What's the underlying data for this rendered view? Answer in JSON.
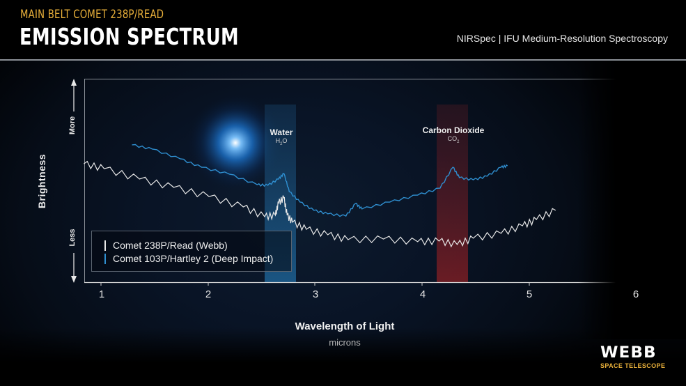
{
  "header": {
    "subtitle": "MAIN BELT COMET 238P/READ",
    "title": "EMISSION SPECTRUM",
    "instrument": "NIRSpec | IFU Medium-Resolution Spectroscopy"
  },
  "colors": {
    "accent_gold": "#e9b03a",
    "series_webb": "#e8e8e8",
    "series_deep_impact": "#2f8fd0",
    "water_band": "#1f5f8f",
    "co2_band": "#6a1b1e"
  },
  "axes": {
    "ylabel": "Brightness",
    "y_more": "More",
    "y_less": "Less",
    "xlabel": "Wavelength of Light",
    "xunit": "microns",
    "xticks": [
      "1",
      "2",
      "3",
      "4",
      "5",
      "6"
    ]
  },
  "annotations": {
    "water": {
      "label": "Water",
      "formula_main": "H",
      "formula_sub": "2",
      "formula_tail": "O"
    },
    "co2": {
      "label": "Carbon Dioxide",
      "formula_main": "CO",
      "formula_sub": "2",
      "formula_tail": ""
    }
  },
  "legend": {
    "items": [
      {
        "label": "Comet 238P/Read (Webb)",
        "color": "#e8e8e8"
      },
      {
        "label": "Comet 103P/Hartley 2 (Deep Impact)",
        "color": "#2f8fd0"
      }
    ]
  },
  "logo": {
    "word": "WEBB",
    "sub": "SPACE TELESCOPE"
  },
  "chart_data": {
    "type": "line",
    "title": "EMISSION SPECTRUM",
    "subtitle": "MAIN BELT COMET 238P/READ",
    "xlabel": "Wavelength of Light (microns)",
    "ylabel": "Brightness (relative, Less to More)",
    "xlim": [
      0.84,
      6.0
    ],
    "ylim": [
      0,
      100
    ],
    "grid": false,
    "legend_position": "lower-left inside",
    "xticks": [
      1,
      2,
      3,
      4,
      5,
      6
    ],
    "bands": [
      {
        "name": "Water H2O",
        "x_range": [
          2.53,
          2.82
        ],
        "color": "#1f5f8f"
      },
      {
        "name": "Carbon Dioxide CO2",
        "x_range": [
          4.14,
          4.43
        ],
        "color": "#6a1b1e"
      }
    ],
    "series": [
      {
        "name": "Comet 238P/Read (Webb)",
        "color": "#e8e8e8",
        "x": [
          0.84,
          1.03,
          1.36,
          1.68,
          2.01,
          2.33,
          2.53,
          2.63,
          2.66,
          2.71,
          2.74,
          2.79,
          2.92,
          3.12,
          3.31,
          3.64,
          3.96,
          4.16,
          4.33,
          4.48,
          4.74,
          4.94,
          5.07,
          5.25
        ],
        "y": [
          58.2,
          55.8,
          50.7,
          46.6,
          42.1,
          37.0,
          32.2,
          32.9,
          39.0,
          41.4,
          32.9,
          29.5,
          26.0,
          23.3,
          20.9,
          21.2,
          19.9,
          20.2,
          18.5,
          21.6,
          24.0,
          27.7,
          30.8,
          35.3
        ]
      },
      {
        "name": "Comet 103P/Hartley 2 (Deep Impact)",
        "color": "#2f8fd0",
        "x": [
          1.29,
          1.48,
          1.74,
          1.94,
          2.2,
          2.46,
          2.56,
          2.66,
          2.71,
          2.76,
          2.86,
          2.99,
          3.12,
          3.29,
          3.38,
          3.44,
          3.7,
          3.96,
          4.17,
          4.29,
          4.35,
          4.48,
          4.61,
          4.74,
          4.8
        ],
        "y": [
          67.5,
          65.4,
          60.6,
          56.5,
          53.1,
          47.9,
          47.6,
          50.7,
          53.4,
          44.5,
          39.4,
          35.3,
          33.6,
          32.5,
          38.7,
          36.0,
          39.4,
          42.8,
          46.2,
          56.5,
          51.4,
          50.3,
          52.1,
          56.5,
          57.2
        ]
      }
    ]
  }
}
